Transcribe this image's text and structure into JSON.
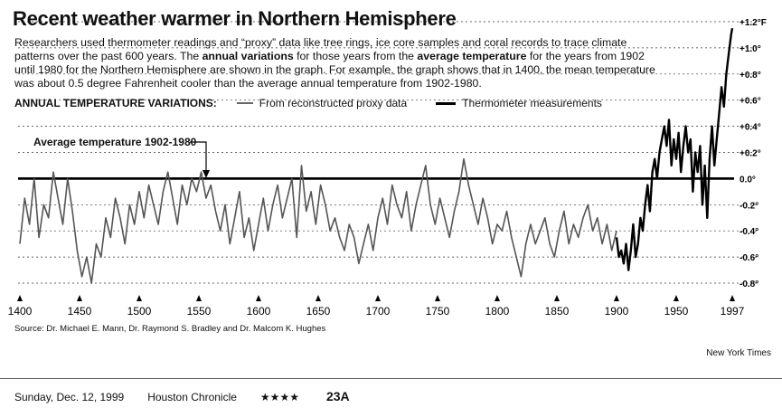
{
  "header": {
    "title": "Recent weather warmer in Northern Hemisphere",
    "desc": [
      {
        "t": "Researchers used thermometer readings and “proxy” data like tree rings, ice core samples and coral records to trace climate patterns over the past 600 years. The ",
        "b": false
      },
      {
        "t": "annual variations",
        "b": true
      },
      {
        "t": " for those years from the ",
        "b": false
      },
      {
        "t": "average temperature",
        "b": true
      },
      {
        "t": " for the years from 1902 until 1980 for the Northern Hemisphere are shown in the graph. For example, the graph shows that in 1400, the mean temperature was about 0.5 degree Fahrenheit cooler than the average annual temperature from 1902-1980.",
        "b": false
      }
    ]
  },
  "legend": {
    "label": "ANNUAL TEMPERATURE VARIATIONS:",
    "proxy": "From reconstructed proxy data",
    "thermo": "Thermometer measurements"
  },
  "annotation": {
    "avg_label": "Average temperature 1902-1980"
  },
  "chart_data": {
    "type": "line",
    "xlim": [
      1400,
      1997
    ],
    "ylim": [
      -0.8,
      1.2
    ],
    "baseline": 0.0,
    "x_ticks": [
      {
        "v": 1400,
        "label": "1400"
      },
      {
        "v": 1450,
        "label": "1450"
      },
      {
        "v": 1500,
        "label": "1500"
      },
      {
        "v": 1550,
        "label": "1550"
      },
      {
        "v": 1600,
        "label": "1600"
      },
      {
        "v": 1650,
        "label": "1650"
      },
      {
        "v": 1700,
        "label": "1700"
      },
      {
        "v": 1750,
        "label": "1750"
      },
      {
        "v": 1800,
        "label": "1800"
      },
      {
        "v": 1850,
        "label": "1850"
      },
      {
        "v": 1900,
        "label": "1900"
      },
      {
        "v": 1950,
        "label": "1950"
      },
      {
        "v": 1997,
        "label": "1997"
      }
    ],
    "y_ticks": [
      {
        "v": 1.2,
        "label": "+1.2°F"
      },
      {
        "v": 1.0,
        "label": "+1.0°"
      },
      {
        "v": 0.8,
        "label": "+0.8°"
      },
      {
        "v": 0.6,
        "label": "+0.6°"
      },
      {
        "v": 0.4,
        "label": "+0.4°"
      },
      {
        "v": 0.2,
        "label": "+0.2°"
      },
      {
        "v": 0.0,
        "label": "0.0°"
      },
      {
        "v": -0.2,
        "label": "-0.2°"
      },
      {
        "v": -0.4,
        "label": "-0.4°"
      },
      {
        "v": -0.6,
        "label": "-0.6°"
      },
      {
        "v": -0.8,
        "label": "-0.8°"
      }
    ],
    "series": [
      {
        "name": "From reconstructed proxy data",
        "x": [
          1400,
          1404,
          1408,
          1412,
          1416,
          1420,
          1424,
          1428,
          1432,
          1436,
          1440,
          1444,
          1448,
          1452,
          1456,
          1460,
          1464,
          1468,
          1472,
          1476,
          1480,
          1484,
          1488,
          1492,
          1496,
          1500,
          1504,
          1508,
          1512,
          1516,
          1520,
          1524,
          1528,
          1532,
          1536,
          1540,
          1544,
          1548,
          1552,
          1556,
          1560,
          1564,
          1568,
          1572,
          1576,
          1580,
          1584,
          1588,
          1592,
          1596,
          1600,
          1604,
          1608,
          1612,
          1616,
          1620,
          1624,
          1628,
          1632,
          1636,
          1640,
          1644,
          1648,
          1652,
          1656,
          1660,
          1664,
          1668,
          1672,
          1676,
          1680,
          1684,
          1688,
          1692,
          1696,
          1700,
          1704,
          1708,
          1712,
          1716,
          1720,
          1724,
          1728,
          1732,
          1736,
          1740,
          1744,
          1748,
          1752,
          1756,
          1760,
          1764,
          1768,
          1772,
          1776,
          1780,
          1784,
          1788,
          1792,
          1796,
          1800,
          1804,
          1808,
          1812,
          1816,
          1820,
          1824,
          1828,
          1832,
          1836,
          1840,
          1844,
          1848,
          1852,
          1856,
          1860,
          1864,
          1868,
          1872,
          1876,
          1880,
          1884,
          1888,
          1892,
          1896,
          1900
        ],
        "y": [
          -0.5,
          -0.15,
          -0.35,
          0.0,
          -0.45,
          -0.2,
          -0.3,
          0.05,
          -0.15,
          -0.35,
          0.0,
          -0.25,
          -0.55,
          -0.75,
          -0.6,
          -0.8,
          -0.5,
          -0.6,
          -0.3,
          -0.45,
          -0.15,
          -0.3,
          -0.5,
          -0.2,
          -0.35,
          -0.1,
          -0.3,
          -0.05,
          -0.2,
          -0.35,
          -0.1,
          0.05,
          -0.15,
          -0.35,
          -0.05,
          -0.2,
          0.0,
          -0.1,
          0.05,
          -0.15,
          -0.05,
          -0.25,
          -0.4,
          -0.2,
          -0.5,
          -0.3,
          -0.1,
          -0.45,
          -0.3,
          -0.55,
          -0.35,
          -0.15,
          -0.4,
          -0.2,
          -0.05,
          -0.3,
          -0.15,
          0.0,
          -0.45,
          0.1,
          -0.25,
          -0.1,
          -0.35,
          -0.05,
          -0.2,
          -0.4,
          -0.3,
          -0.45,
          -0.55,
          -0.35,
          -0.45,
          -0.65,
          -0.5,
          -0.35,
          -0.55,
          -0.3,
          -0.15,
          -0.35,
          -0.05,
          -0.2,
          -0.3,
          -0.1,
          -0.4,
          -0.2,
          -0.05,
          0.1,
          -0.2,
          -0.35,
          -0.15,
          -0.3,
          -0.45,
          -0.25,
          -0.1,
          0.15,
          -0.05,
          -0.2,
          -0.35,
          -0.15,
          -0.3,
          -0.5,
          -0.35,
          -0.4,
          -0.25,
          -0.45,
          -0.6,
          -0.75,
          -0.5,
          -0.35,
          -0.5,
          -0.4,
          -0.3,
          -0.5,
          -0.6,
          -0.4,
          -0.25,
          -0.5,
          -0.35,
          -0.45,
          -0.3,
          -0.2,
          -0.4,
          -0.3,
          -0.5,
          -0.35,
          -0.55,
          -0.4
        ]
      },
      {
        "name": "Thermometer measurements",
        "x": [
          1900,
          1902,
          1904,
          1906,
          1908,
          1910,
          1912,
          1914,
          1916,
          1918,
          1920,
          1922,
          1924,
          1926,
          1928,
          1930,
          1932,
          1934,
          1936,
          1938,
          1940,
          1942,
          1944,
          1946,
          1948,
          1950,
          1952,
          1954,
          1956,
          1958,
          1960,
          1962,
          1964,
          1966,
          1968,
          1970,
          1972,
          1974,
          1976,
          1978,
          1980,
          1982,
          1984,
          1986,
          1988,
          1990,
          1992,
          1994,
          1996,
          1997
        ],
        "y": [
          -0.45,
          -0.6,
          -0.55,
          -0.65,
          -0.5,
          -0.7,
          -0.55,
          -0.35,
          -0.6,
          -0.5,
          -0.3,
          -0.4,
          -0.2,
          -0.05,
          -0.25,
          0.05,
          0.15,
          0.0,
          0.2,
          0.3,
          0.4,
          0.25,
          0.45,
          0.1,
          0.3,
          0.15,
          0.35,
          0.05,
          0.25,
          0.4,
          0.2,
          0.3,
          -0.1,
          0.2,
          0.05,
          0.25,
          -0.2,
          0.1,
          -0.3,
          0.15,
          0.4,
          0.1,
          0.3,
          0.5,
          0.7,
          0.55,
          0.8,
          0.95,
          1.1,
          1.15
        ]
      }
    ]
  },
  "source": "Source: Dr. Michael E. Mann, Dr. Raymond S. Bradley and Dr. Malcom K. Hughes",
  "credit": "New York Times",
  "footer": {
    "date": "Sunday, Dec. 12, 1999",
    "paper": "Houston Chronicle",
    "stars": "★★★★",
    "page": "23A"
  }
}
